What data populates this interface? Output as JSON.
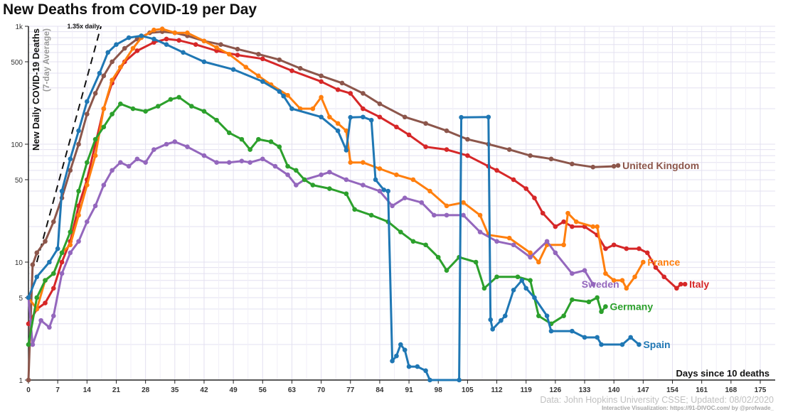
{
  "title": "New Deaths from COVID-19 per Day",
  "source": "Data: John Hopkins University CSSE; Updated: 08/02/2020",
  "credit": "Interactive Visualization: https://91-DIVOC.com/ by @profwade_",
  "chart_data": {
    "type": "line",
    "title": "New Deaths from COVID-19 per Day",
    "xlabel": "Days since 10 deaths",
    "ylabel": "New Daily COVID-19 Deaths",
    "ylabel_sub": "(7-day Average)",
    "yscale": "log",
    "xlim": [
      0,
      178
    ],
    "ylim": [
      1,
      1000
    ],
    "grid": true,
    "x_ticks": [
      0,
      7,
      14,
      21,
      28,
      35,
      42,
      49,
      56,
      63,
      70,
      77,
      84,
      91,
      98,
      105,
      112,
      119,
      126,
      133,
      140,
      147,
      154,
      161,
      168,
      175
    ],
    "y_ticks": [
      {
        "v": 1,
        "label": "1"
      },
      {
        "v": 5,
        "label": "5"
      },
      {
        "v": 10,
        "label": "10"
      },
      {
        "v": 50,
        "label": "50"
      },
      {
        "v": 100,
        "label": "100"
      },
      {
        "v": 500,
        "label": "500"
      },
      {
        "v": 1000,
        "label": "1k"
      }
    ],
    "reference_line": {
      "label": "1.35x daily",
      "growth": 1.35
    },
    "series": [
      {
        "name": "United Kingdom",
        "color": "#8c564b",
        "points": [
          [
            0,
            1
          ],
          [
            1,
            9.5
          ],
          [
            2,
            12
          ],
          [
            4,
            15
          ],
          [
            6,
            22
          ],
          [
            8,
            35
          ],
          [
            10,
            60
          ],
          [
            12,
            100
          ],
          [
            14,
            180
          ],
          [
            16,
            270
          ],
          [
            18,
            380
          ],
          [
            20,
            500
          ],
          [
            23,
            650
          ],
          [
            26,
            780
          ],
          [
            29,
            880
          ],
          [
            32,
            900
          ],
          [
            35,
            880
          ],
          [
            38,
            830
          ],
          [
            42,
            750
          ],
          [
            46,
            700
          ],
          [
            50,
            640
          ],
          [
            55,
            580
          ],
          [
            60,
            520
          ],
          [
            65,
            440
          ],
          [
            70,
            380
          ],
          [
            75,
            330
          ],
          [
            80,
            270
          ],
          [
            84,
            220
          ],
          [
            90,
            170
          ],
          [
            95,
            150
          ],
          [
            100,
            130
          ],
          [
            105,
            110
          ],
          [
            110,
            100
          ],
          [
            115,
            90
          ],
          [
            120,
            80
          ],
          [
            125,
            75
          ],
          [
            130,
            68
          ],
          [
            135,
            64
          ],
          [
            140,
            65
          ],
          [
            141,
            66
          ]
        ]
      },
      {
        "name": "Italy",
        "color": "#d62728",
        "points": [
          [
            0,
            3
          ],
          [
            2,
            4
          ],
          [
            4,
            4.5
          ],
          [
            6,
            6
          ],
          [
            8,
            10
          ],
          [
            10,
            15
          ],
          [
            12,
            30
          ],
          [
            14,
            50
          ],
          [
            16,
            100
          ],
          [
            18,
            200
          ],
          [
            20,
            330
          ],
          [
            23,
            500
          ],
          [
            26,
            620
          ],
          [
            30,
            730
          ],
          [
            33,
            780
          ],
          [
            36,
            760
          ],
          [
            40,
            700
          ],
          [
            45,
            620
          ],
          [
            50,
            570
          ],
          [
            56,
            530
          ],
          [
            63,
            420
          ],
          [
            70,
            340
          ],
          [
            74,
            290
          ],
          [
            77,
            270
          ],
          [
            80,
            200
          ],
          [
            84,
            170
          ],
          [
            88,
            140
          ],
          [
            91,
            120
          ],
          [
            95,
            95
          ],
          [
            100,
            90
          ],
          [
            105,
            80
          ],
          [
            110,
            65
          ],
          [
            112,
            60
          ],
          [
            116,
            50
          ],
          [
            119,
            42
          ],
          [
            121,
            35
          ],
          [
            123,
            26
          ],
          [
            126,
            20
          ],
          [
            128,
            22
          ],
          [
            130,
            20
          ],
          [
            133,
            20
          ],
          [
            136,
            17
          ],
          [
            138,
            13
          ],
          [
            140,
            14
          ],
          [
            143,
            13
          ],
          [
            146,
            13
          ],
          [
            148,
            12
          ],
          [
            150,
            9
          ],
          [
            152,
            7.5
          ],
          [
            155,
            6
          ],
          [
            156,
            6.5
          ],
          [
            157,
            6.5
          ]
        ]
      },
      {
        "name": "France",
        "color": "#ff7f0e",
        "points": [
          [
            0,
            5
          ],
          [
            2,
            4
          ],
          [
            4,
            7
          ],
          [
            6,
            8
          ],
          [
            8,
            12
          ],
          [
            10,
            14
          ],
          [
            12,
            25
          ],
          [
            14,
            45
          ],
          [
            16,
            80
          ],
          [
            18,
            200
          ],
          [
            20,
            350
          ],
          [
            22,
            450
          ],
          [
            25,
            650
          ],
          [
            27,
            800
          ],
          [
            30,
            930
          ],
          [
            32,
            950
          ],
          [
            35,
            880
          ],
          [
            38,
            880
          ],
          [
            42,
            750
          ],
          [
            45,
            660
          ],
          [
            48,
            580
          ],
          [
            52,
            450
          ],
          [
            55,
            380
          ],
          [
            58,
            320
          ],
          [
            62,
            260
          ],
          [
            65,
            200
          ],
          [
            68,
            200
          ],
          [
            70,
            250
          ],
          [
            72,
            170
          ],
          [
            74,
            150
          ],
          [
            76,
            130
          ],
          [
            77,
            70
          ],
          [
            80,
            70
          ],
          [
            84,
            62
          ],
          [
            88,
            55
          ],
          [
            92,
            50
          ],
          [
            96,
            40
          ],
          [
            100,
            30
          ],
          [
            104,
            32
          ],
          [
            108,
            25
          ],
          [
            110,
            17
          ],
          [
            115,
            16
          ],
          [
            120,
            12
          ],
          [
            122,
            10
          ],
          [
            124,
            14
          ],
          [
            128,
            14
          ],
          [
            129,
            26
          ],
          [
            131,
            22
          ],
          [
            135,
            20
          ],
          [
            136,
            20
          ],
          [
            138,
            8
          ],
          [
            140,
            7
          ],
          [
            142,
            7
          ],
          [
            143,
            6
          ],
          [
            145,
            7.5
          ],
          [
            147,
            10
          ]
        ]
      },
      {
        "name": "Sweden",
        "color": "#9467bd",
        "points": [
          [
            0,
            5
          ],
          [
            1,
            2
          ],
          [
            3,
            3.2
          ],
          [
            5,
            2.8
          ],
          [
            6,
            3.5
          ],
          [
            8,
            8
          ],
          [
            10,
            12
          ],
          [
            12,
            15
          ],
          [
            14,
            22
          ],
          [
            16,
            30
          ],
          [
            18,
            45
          ],
          [
            20,
            60
          ],
          [
            22,
            70
          ],
          [
            24,
            65
          ],
          [
            26,
            75
          ],
          [
            28,
            70
          ],
          [
            30,
            90
          ],
          [
            33,
            100
          ],
          [
            35,
            105
          ],
          [
            38,
            95
          ],
          [
            42,
            80
          ],
          [
            45,
            70
          ],
          [
            48,
            70
          ],
          [
            51,
            72
          ],
          [
            53,
            70
          ],
          [
            56,
            75
          ],
          [
            59,
            65
          ],
          [
            62,
            55
          ],
          [
            64,
            45
          ],
          [
            66,
            50
          ],
          [
            70,
            55
          ],
          [
            72,
            58
          ],
          [
            76,
            50
          ],
          [
            80,
            45
          ],
          [
            84,
            40
          ],
          [
            87,
            30
          ],
          [
            90,
            35
          ],
          [
            94,
            32
          ],
          [
            97,
            25
          ],
          [
            100,
            25
          ],
          [
            104,
            25
          ],
          [
            108,
            18
          ],
          [
            112,
            15
          ],
          [
            116,
            14
          ],
          [
            120,
            11
          ],
          [
            124,
            15
          ],
          [
            126,
            12
          ],
          [
            130,
            8
          ],
          [
            133,
            8.5
          ],
          [
            135,
            6.5
          ]
        ]
      },
      {
        "name": "Germany",
        "color": "#2ca02c",
        "points": [
          [
            0,
            2
          ],
          [
            2,
            5
          ],
          [
            4,
            7
          ],
          [
            6,
            8
          ],
          [
            8,
            12
          ],
          [
            10,
            18
          ],
          [
            12,
            40
          ],
          [
            14,
            70
          ],
          [
            16,
            110
          ],
          [
            18,
            140
          ],
          [
            20,
            180
          ],
          [
            22,
            220
          ],
          [
            25,
            200
          ],
          [
            28,
            190
          ],
          [
            31,
            210
          ],
          [
            34,
            240
          ],
          [
            36,
            250
          ],
          [
            39,
            210
          ],
          [
            42,
            190
          ],
          [
            45,
            160
          ],
          [
            48,
            125
          ],
          [
            51,
            110
          ],
          [
            53,
            90
          ],
          [
            55,
            110
          ],
          [
            58,
            105
          ],
          [
            60,
            95
          ],
          [
            62,
            65
          ],
          [
            64,
            60
          ],
          [
            66,
            50
          ],
          [
            68,
            45
          ],
          [
            72,
            42
          ],
          [
            76,
            38
          ],
          [
            78,
            28
          ],
          [
            82,
            25
          ],
          [
            86,
            22
          ],
          [
            89,
            18
          ],
          [
            92,
            15
          ],
          [
            95,
            14
          ],
          [
            98,
            11
          ],
          [
            100,
            8.5
          ],
          [
            103,
            11
          ],
          [
            107,
            10
          ],
          [
            109,
            6
          ],
          [
            112,
            7.5
          ],
          [
            117,
            7.5
          ],
          [
            120,
            7
          ],
          [
            122,
            3.5
          ],
          [
            125,
            3
          ],
          [
            128,
            3.5
          ],
          [
            130,
            4.8
          ],
          [
            134,
            4.6
          ],
          [
            136,
            5
          ],
          [
            137,
            3.8
          ],
          [
            138,
            4.2
          ]
        ]
      },
      {
        "name": "Spain",
        "color": "#1f77b4",
        "points": [
          [
            0,
            5
          ],
          [
            2,
            7.5
          ],
          [
            5,
            10
          ],
          [
            7,
            13
          ],
          [
            8,
            40
          ],
          [
            10,
            75
          ],
          [
            12,
            130
          ],
          [
            14,
            230
          ],
          [
            17,
            400
          ],
          [
            19,
            600
          ],
          [
            21,
            700
          ],
          [
            24,
            800
          ],
          [
            27,
            830
          ],
          [
            30,
            780
          ],
          [
            33,
            700
          ],
          [
            37,
            600
          ],
          [
            42,
            500
          ],
          [
            49,
            430
          ],
          [
            56,
            340
          ],
          [
            60,
            280
          ],
          [
            61,
            256
          ],
          [
            63,
            200
          ],
          [
            70,
            170
          ],
          [
            74,
            130
          ],
          [
            76,
            89
          ],
          [
            77,
            169
          ],
          [
            80,
            170
          ],
          [
            82,
            160
          ],
          [
            83,
            50
          ],
          [
            85,
            41
          ],
          [
            86,
            40
          ],
          [
            87,
            1.45
          ],
          [
            88,
            1.6
          ],
          [
            89,
            2
          ],
          [
            90,
            1.8
          ],
          [
            91,
            1.3
          ],
          [
            93,
            1.3
          ],
          [
            95,
            1.2
          ],
          [
            96,
            1
          ],
          [
            103,
            1
          ],
          [
            103.5,
            169
          ],
          [
            110,
            170
          ],
          [
            110.5,
            3.25
          ],
          [
            111,
            2.7
          ],
          [
            113,
            3.2
          ],
          [
            114,
            3.5
          ],
          [
            116,
            5.8
          ],
          [
            118,
            7
          ],
          [
            119,
            6
          ],
          [
            121,
            5
          ],
          [
            124,
            3.5
          ],
          [
            125,
            2.6
          ],
          [
            130,
            2.6
          ],
          [
            133,
            2.3
          ],
          [
            136,
            2.3
          ],
          [
            137,
            2
          ],
          [
            142,
            2
          ],
          [
            144,
            2.3
          ],
          [
            146,
            2
          ]
        ]
      }
    ]
  }
}
